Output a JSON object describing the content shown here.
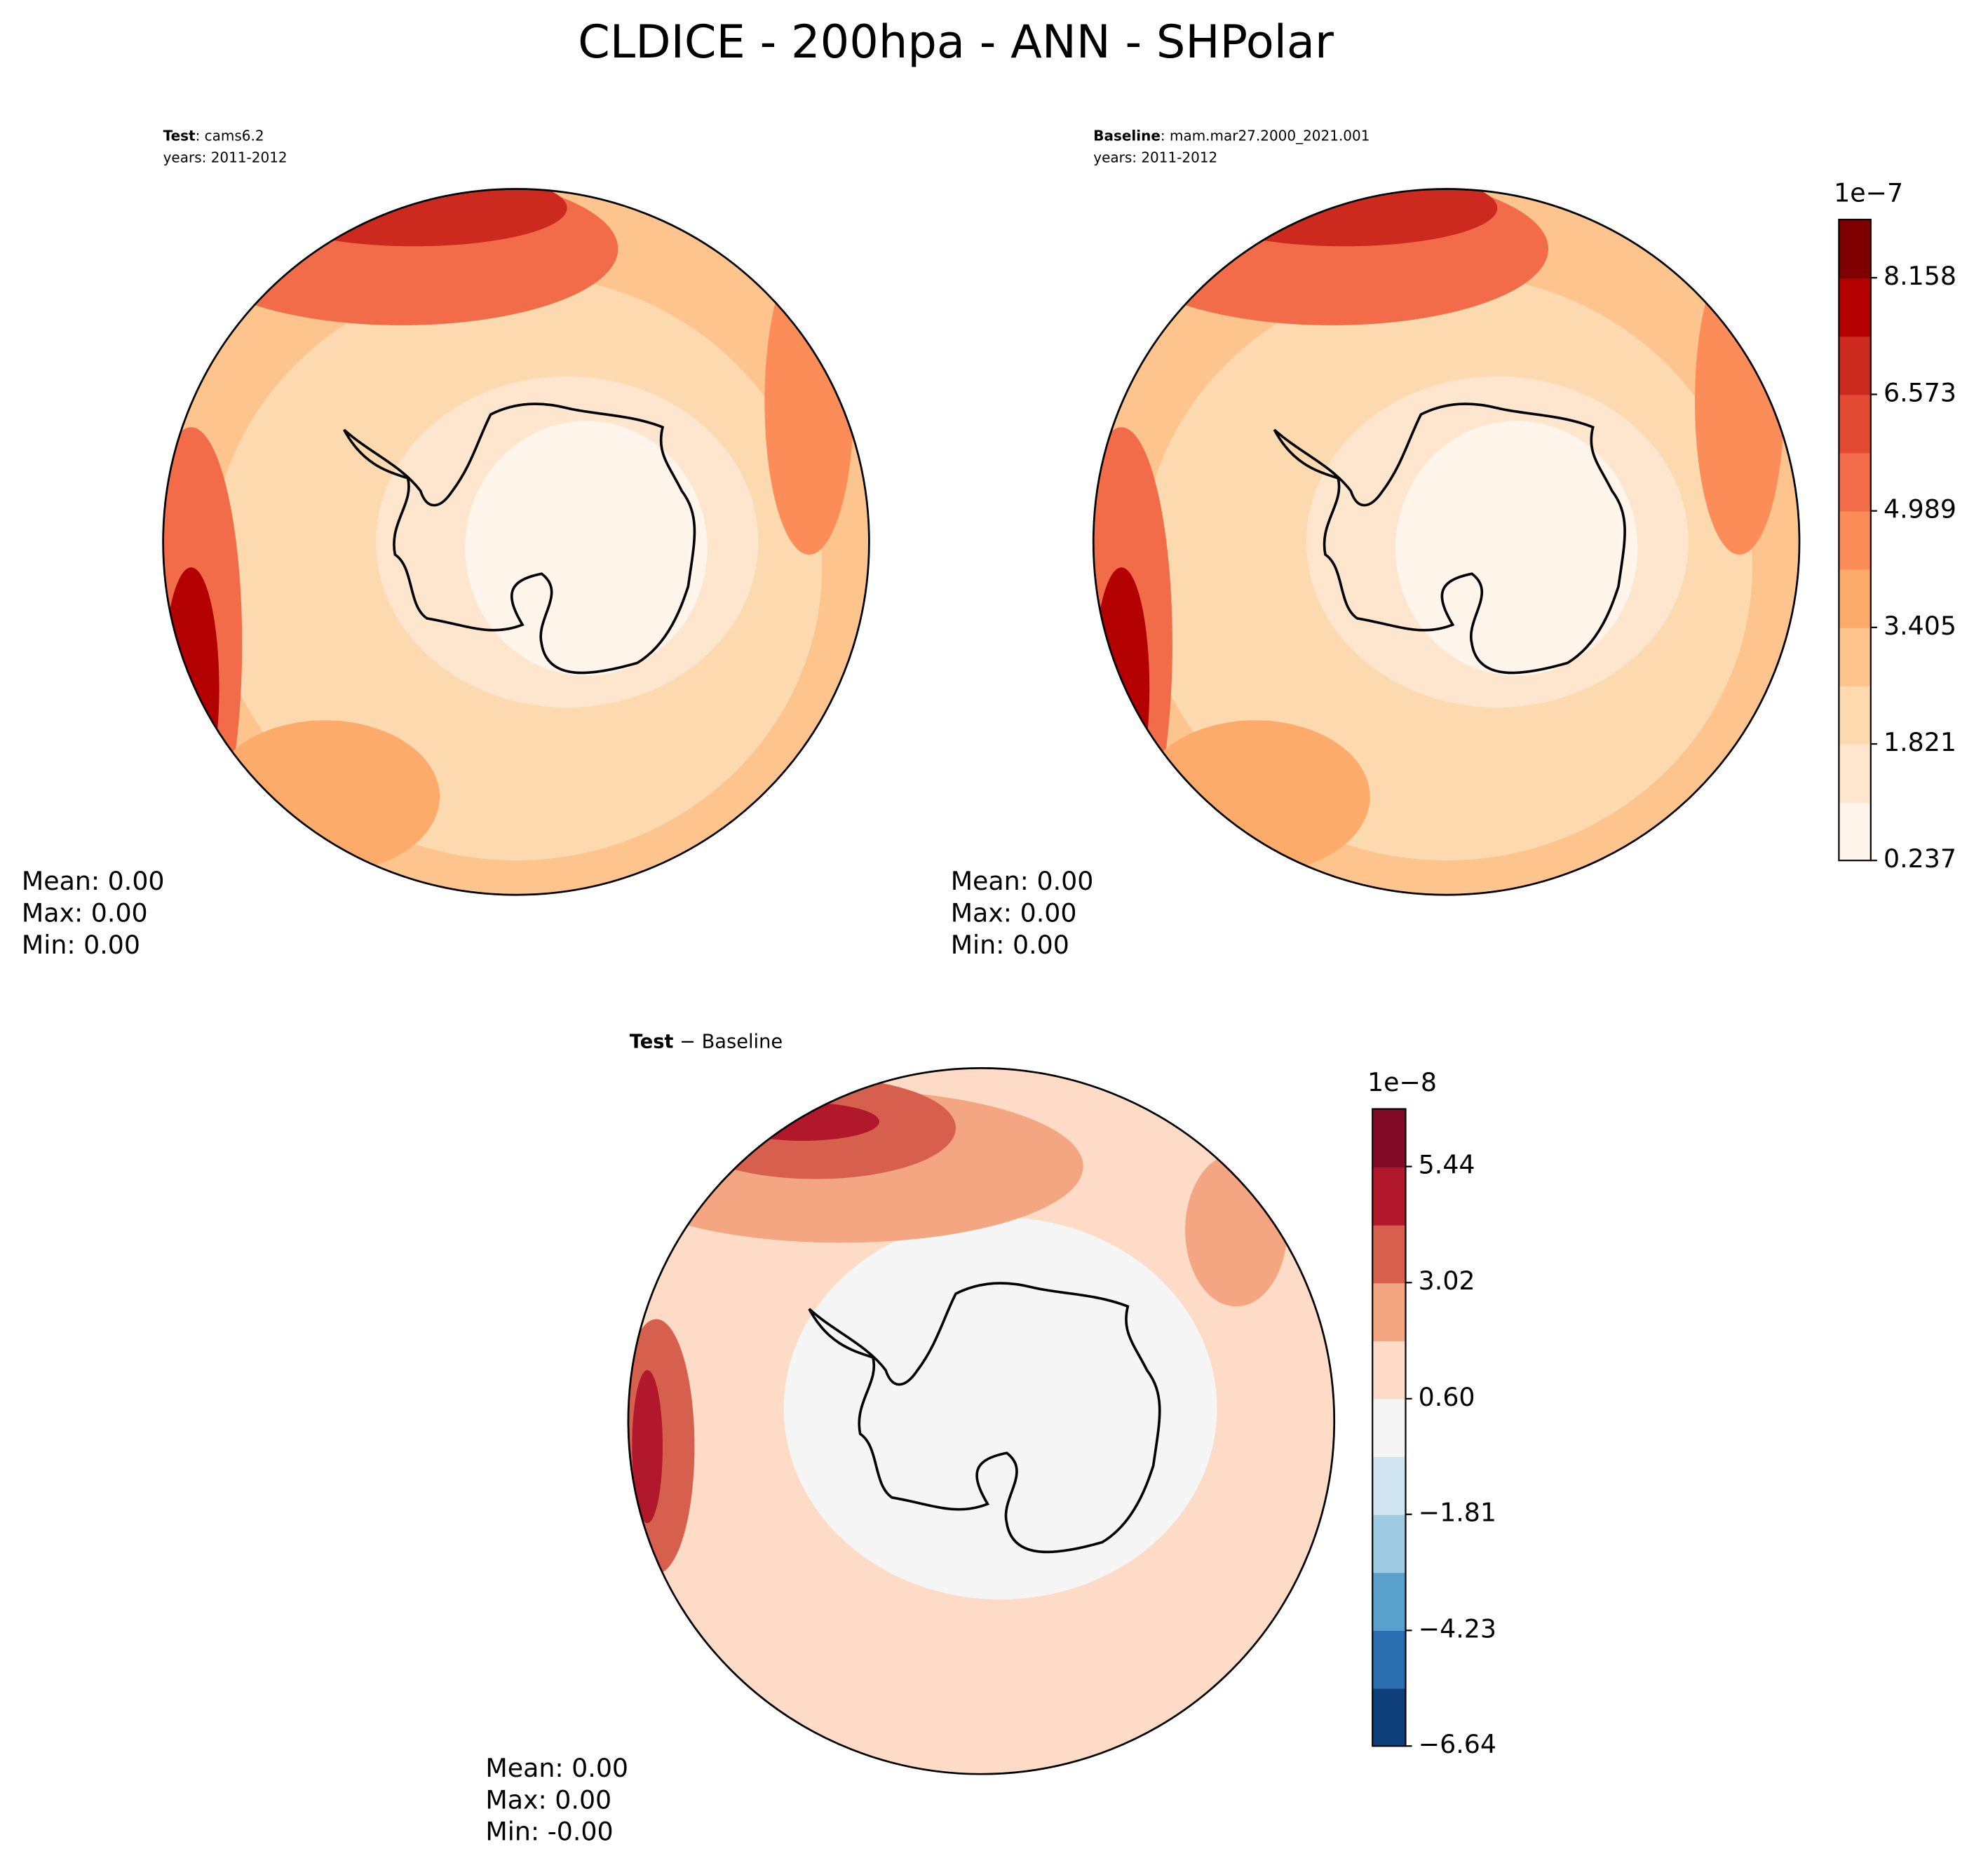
{
  "title": "CLDICE - 200hpa - ANN - SHPolar",
  "chart_data": [
    {
      "type": "contour",
      "title_bold": "Test",
      "title_rest": ": cams6.2",
      "subtitle": "years: 2011-2012",
      "stats": [
        "Mean:  0.00",
        "Max:  0.00",
        "Min:  0.00"
      ]
    },
    {
      "type": "contour",
      "title_bold": "Baseline",
      "title_rest": ": mam.mar27.2000_2021.001",
      "subtitle": "years: 2011-2012",
      "stats": [
        "Mean:  0.00",
        "Max:  0.00",
        "Min:  0.00"
      ],
      "colorbar": {
        "offset_label": "1e−7",
        "ylim": [
          0.237,
          8.95
        ],
        "yticks": [
          0.237,
          1.821,
          3.405,
          4.989,
          6.573,
          8.158
        ],
        "colors": [
          "#fff5eb",
          "#fee6ce",
          "#fdd9b0",
          "#fdc48d",
          "#fdab6a",
          "#fc8d59",
          "#f26c4a",
          "#e34a33",
          "#cc2a1e",
          "#b30000",
          "#7f0000"
        ]
      }
    },
    {
      "type": "contour",
      "title_bold": "Test",
      "title_rest": " − Baseline",
      "stats": [
        "Mean:  0.00",
        "Max:  0.00",
        "Min: -0.00"
      ],
      "colorbar": {
        "offset_label": "1e−8",
        "ylim": [
          -6.64,
          6.64
        ],
        "yticks": [
          {
            "value": -6.64,
            "label": "−6.64"
          },
          {
            "value": -4.23,
            "label": "−4.23"
          },
          {
            "value": -1.81,
            "label": "−1.81"
          },
          {
            "value": 0.6,
            "label": "0.60"
          },
          3.02,
          5.44
        ],
        "colors": [
          "#0f3f7a",
          "#2b6fb0",
          "#5aa0cc",
          "#9ecbe1",
          "#d1e5f0",
          "#f5f5f5",
          "#fddbc7",
          "#f4a582",
          "#d6604d",
          "#b2182b",
          "#820c28"
        ]
      }
    }
  ]
}
